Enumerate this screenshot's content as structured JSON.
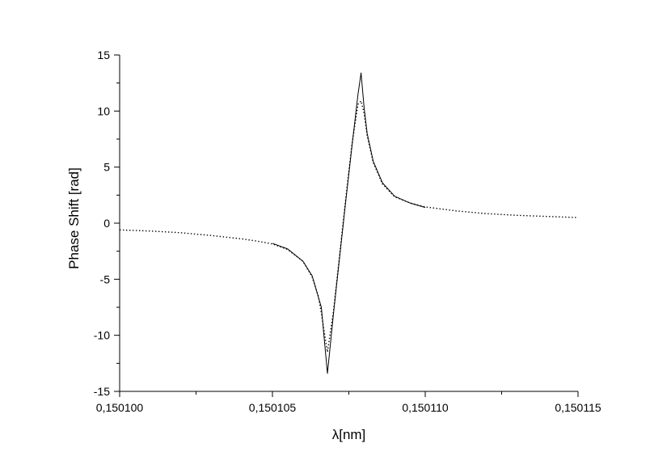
{
  "chart_data": {
    "type": "line",
    "title": "",
    "xlabel": "λ[nm]",
    "ylabel": "Phase Shift [rad]",
    "xlim": [
      0.1501,
      0.150115
    ],
    "ylim": [
      -15,
      15
    ],
    "x_ticks": [
      0.1501,
      0.150105,
      0.15011,
      0.150115
    ],
    "x_tick_labels": [
      "0,150100",
      "0,150105",
      "0,150110",
      "0,150115"
    ],
    "y_ticks": [
      -15,
      -10,
      -5,
      0,
      5,
      10,
      15
    ],
    "y_tick_labels": [
      "-15",
      "-10",
      "-5",
      "0",
      "5",
      "10",
      "15"
    ],
    "grid": false,
    "legend": "none",
    "series": [
      {
        "style": "solid",
        "color": "#000000",
        "x": [
          0.150105,
          0.1501055,
          0.150106,
          0.1501063,
          0.1501066,
          0.1501068,
          0.150107,
          0.1501072,
          0.1501074,
          0.1501076,
          0.1501078,
          0.1501079,
          0.150108,
          0.1501081,
          0.1501083,
          0.1501086,
          0.150109,
          0.1501095,
          0.15011
        ],
        "y": [
          -1.8,
          -2.3,
          -3.4,
          -4.7,
          -7.5,
          -13.4,
          -8.0,
          -3.0,
          2.0,
          6.8,
          11.5,
          13.4,
          10.3,
          8.0,
          5.5,
          3.6,
          2.4,
          1.8,
          1.4
        ]
      },
      {
        "style": "dotted",
        "color": "#000000",
        "x": [
          0.1501,
          0.150101,
          0.150102,
          0.150103,
          0.150104,
          0.1501045,
          0.150105,
          0.1501055,
          0.150106,
          0.1501063,
          0.1501065,
          0.1501066,
          0.1501067,
          0.1501068,
          0.150107,
          0.1501072,
          0.1501074,
          0.1501076,
          0.1501078,
          0.1501079,
          0.150108,
          0.1501081,
          0.1501083,
          0.1501086,
          0.150109,
          0.1501095,
          0.15011,
          0.150111,
          0.150112,
          0.150113,
          0.150114,
          0.150115
        ],
        "y": [
          -0.6,
          -0.7,
          -0.85,
          -1.1,
          -1.4,
          -1.6,
          -1.85,
          -2.35,
          -3.4,
          -4.8,
          -6.5,
          -8.0,
          -9.8,
          -11.5,
          -7.8,
          -2.8,
          2.2,
          7.0,
          10.6,
          10.9,
          9.8,
          7.8,
          5.4,
          3.5,
          2.35,
          1.8,
          1.45,
          1.1,
          0.85,
          0.7,
          0.6,
          0.5
        ]
      }
    ]
  }
}
